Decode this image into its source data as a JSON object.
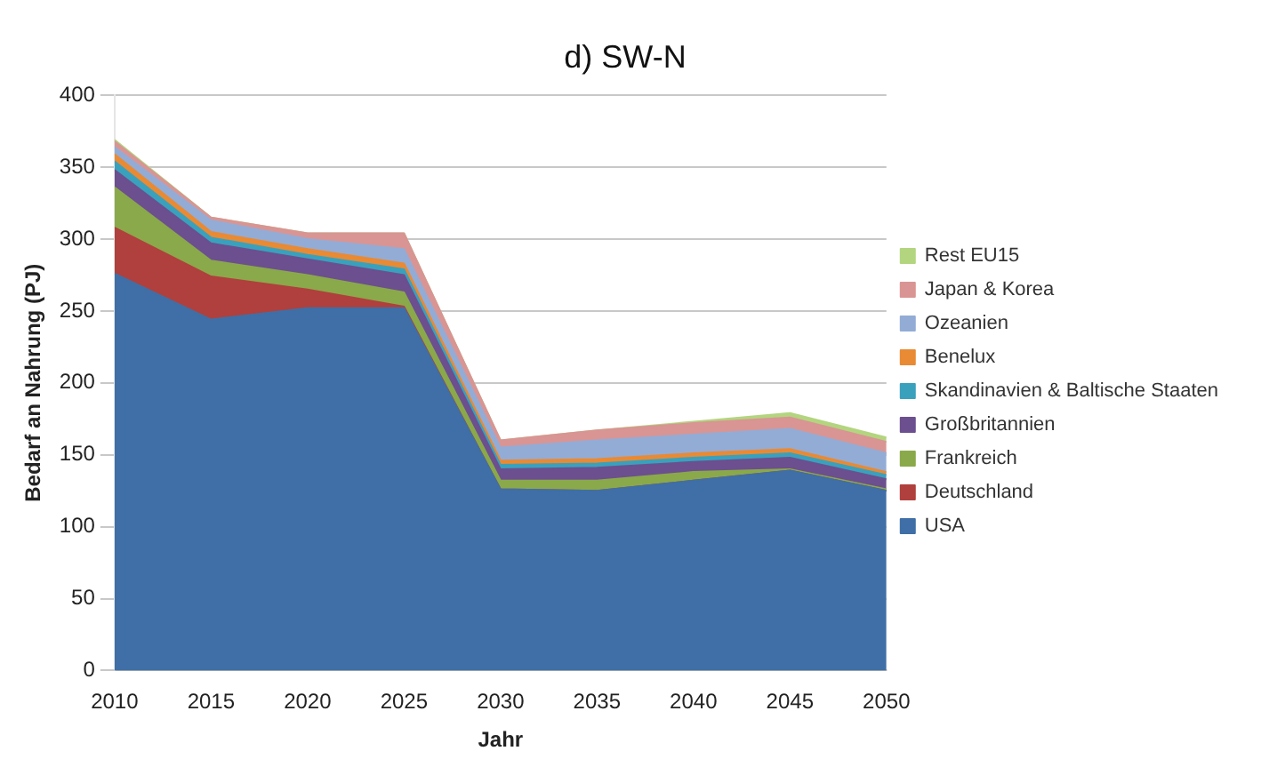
{
  "chart_data": {
    "type": "area",
    "title": "d) SW-N",
    "xlabel": "Jahr",
    "ylabel": "Bedarf an Nahrung (PJ)",
    "stacked": true,
    "x": [
      2010,
      2015,
      2020,
      2025,
      2030,
      2035,
      2040,
      2045,
      2050
    ],
    "xlim": [
      2010,
      2050
    ],
    "xticks": [
      2010,
      2015,
      2020,
      2025,
      2030,
      2035,
      2040,
      2045,
      2050
    ],
    "ylim": [
      0,
      400
    ],
    "yticks": [
      0,
      50,
      100,
      150,
      200,
      250,
      300,
      350,
      400
    ],
    "grid": "y",
    "legend": "right",
    "series": [
      {
        "name": "USA",
        "color": "#3f6fa6",
        "values": [
          276,
          244,
          252,
          252,
          126,
          125,
          132,
          139,
          125
        ]
      },
      {
        "name": "Deutschland",
        "color": "#b0403d",
        "values": [
          32,
          30,
          13,
          1,
          0,
          0,
          0,
          0,
          0
        ]
      },
      {
        "name": "Frankreich",
        "color": "#8aa94a",
        "values": [
          28,
          11,
          10,
          10,
          6,
          7,
          6,
          1,
          1
        ]
      },
      {
        "name": "Großbritannien",
        "color": "#6c4f8f",
        "values": [
          12,
          12,
          11,
          12,
          8,
          9,
          7,
          8,
          7
        ]
      },
      {
        "name": "Skandinavien & Baltische Staaten",
        "color": "#3aa1bd",
        "values": [
          6,
          4,
          3,
          4,
          3,
          3,
          3,
          3,
          3
        ]
      },
      {
        "name": "Benelux",
        "color": "#e98a34",
        "values": [
          5,
          4,
          4,
          4,
          3,
          3,
          3,
          3,
          2
        ]
      },
      {
        "name": "Ozeanien",
        "color": "#93acd6",
        "values": [
          5,
          8,
          7,
          10,
          9,
          13,
          13,
          14,
          13
        ]
      },
      {
        "name": "Japan & Korea",
        "color": "#d99593",
        "values": [
          4,
          2,
          4,
          11,
          5,
          7,
          8,
          8,
          8
        ]
      },
      {
        "name": "Rest EU15",
        "color": "#b3d57f",
        "values": [
          1,
          0,
          0,
          0,
          0,
          0,
          1,
          3,
          3
        ]
      }
    ]
  }
}
